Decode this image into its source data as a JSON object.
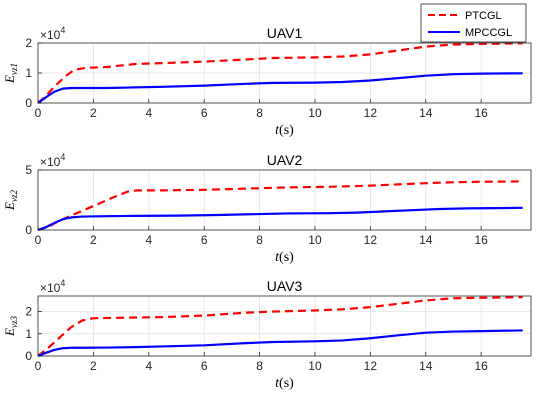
{
  "legend": {
    "placement": "top-right",
    "entries": [
      {
        "label": "PTCGL",
        "color": "#ff0000",
        "style": "dashed"
      },
      {
        "label": "MPCCGL",
        "color": "#0000ff",
        "style": "solid"
      }
    ]
  },
  "chart_data": [
    {
      "type": "line",
      "title": "UAV1",
      "xlabel_var": "t",
      "xlabel_unit": "(s)",
      "ylabel_base": "E",
      "ylabel_sub": "vz1",
      "exponent_base": "×10",
      "exponent_power": "4",
      "xlim": [
        0,
        17.8
      ],
      "ylim": [
        0,
        2
      ],
      "xticks": [
        0,
        2,
        4,
        6,
        8,
        10,
        12,
        14,
        16
      ],
      "yticks": [
        0,
        1,
        2
      ],
      "grid": true,
      "series": [
        {
          "name": "PTCGL",
          "color": "#ff0000",
          "dash": "dashed",
          "x": [
            0,
            0.3,
            0.6,
            1.0,
            1.3,
            1.7,
            2.5,
            3.5,
            4.5,
            6,
            7.5,
            8.5,
            10,
            11,
            12,
            13,
            14,
            15,
            16,
            17.5
          ],
          "y": [
            0,
            0.25,
            0.55,
            0.9,
            1.1,
            1.17,
            1.2,
            1.3,
            1.33,
            1.38,
            1.45,
            1.5,
            1.52,
            1.55,
            1.62,
            1.75,
            1.88,
            1.95,
            1.97,
            1.99
          ]
        },
        {
          "name": "MPCCGL",
          "color": "#0000ff",
          "dash": "solid",
          "x": [
            0,
            0.3,
            0.6,
            0.9,
            1.2,
            1.5,
            2.5,
            3.5,
            4.5,
            6,
            7.5,
            8.5,
            10,
            11,
            12,
            13,
            14,
            15,
            16,
            17.5
          ],
          "y": [
            0,
            0.2,
            0.38,
            0.48,
            0.5,
            0.5,
            0.5,
            0.52,
            0.54,
            0.58,
            0.64,
            0.67,
            0.68,
            0.7,
            0.75,
            0.83,
            0.91,
            0.96,
            0.98,
            0.99
          ]
        }
      ]
    },
    {
      "type": "line",
      "title": "UAV2",
      "xlabel_var": "t",
      "xlabel_unit": "(s)",
      "ylabel_base": "E",
      "ylabel_sub": "vz2",
      "exponent_base": "×10",
      "exponent_power": "4",
      "xlim": [
        0,
        17.8
      ],
      "ylim": [
        0,
        5
      ],
      "xticks": [
        0,
        2,
        4,
        6,
        8,
        10,
        12,
        14,
        16
      ],
      "yticks": [
        0,
        5
      ],
      "grid": true,
      "series": [
        {
          "name": "PTCGL",
          "color": "#ff0000",
          "dash": "dashed",
          "x": [
            0,
            0.4,
            0.8,
            1.2,
            2.0,
            2.8,
            3.3,
            3.6,
            4.5,
            6,
            7.5,
            9,
            10.5,
            12,
            13,
            14,
            15,
            16,
            17.5
          ],
          "y": [
            0,
            0.3,
            0.8,
            1.2,
            2.0,
            2.8,
            3.25,
            3.3,
            3.3,
            3.35,
            3.45,
            3.55,
            3.6,
            3.7,
            3.8,
            3.9,
            3.98,
            4.02,
            4.05
          ]
        },
        {
          "name": "MPCCGL",
          "color": "#0000ff",
          "dash": "solid",
          "x": [
            0,
            0.3,
            0.6,
            0.9,
            1.2,
            1.6,
            2.5,
            3.5,
            5,
            6.5,
            8,
            9,
            10.5,
            11.5,
            12.5,
            13.5,
            14.5,
            15.5,
            16.5,
            17.5
          ],
          "y": [
            0,
            0.25,
            0.6,
            0.9,
            1.05,
            1.12,
            1.15,
            1.18,
            1.2,
            1.25,
            1.33,
            1.38,
            1.4,
            1.45,
            1.55,
            1.65,
            1.75,
            1.8,
            1.82,
            1.85
          ]
        }
      ]
    },
    {
      "type": "line",
      "title": "UAV3",
      "xlabel_var": "t",
      "xlabel_unit": "(s)",
      "ylabel_base": "E",
      "ylabel_sub": "vz3",
      "exponent_base": "×10",
      "exponent_power": "4",
      "xlim": [
        0,
        17.8
      ],
      "ylim": [
        0,
        2.7
      ],
      "xticks": [
        0,
        2,
        4,
        6,
        8,
        10,
        12,
        14,
        16
      ],
      "yticks": [
        0,
        1,
        2
      ],
      "grid": true,
      "series": [
        {
          "name": "PTCGL",
          "color": "#ff0000",
          "dash": "dashed",
          "x": [
            0,
            0.4,
            0.8,
            1.2,
            1.6,
            2.0,
            3.0,
            4.5,
            6,
            7.5,
            8.5,
            10,
            11,
            12,
            13,
            14,
            15,
            16,
            17.5
          ],
          "y": [
            0,
            0.4,
            0.85,
            1.3,
            1.6,
            1.7,
            1.72,
            1.75,
            1.82,
            1.95,
            2.0,
            2.05,
            2.1,
            2.2,
            2.35,
            2.5,
            2.6,
            2.62,
            2.65
          ]
        },
        {
          "name": "MPCCGL",
          "color": "#0000ff",
          "dash": "solid",
          "x": [
            0,
            0.3,
            0.6,
            0.9,
            1.2,
            1.6,
            2.5,
            3.5,
            4.5,
            6,
            7.5,
            8.5,
            10,
            11,
            12,
            13,
            14,
            15,
            16,
            17.5
          ],
          "y": [
            0,
            0.15,
            0.28,
            0.35,
            0.37,
            0.37,
            0.38,
            0.4,
            0.43,
            0.48,
            0.58,
            0.63,
            0.66,
            0.7,
            0.8,
            0.93,
            1.05,
            1.1,
            1.12,
            1.15
          ]
        }
      ]
    }
  ]
}
